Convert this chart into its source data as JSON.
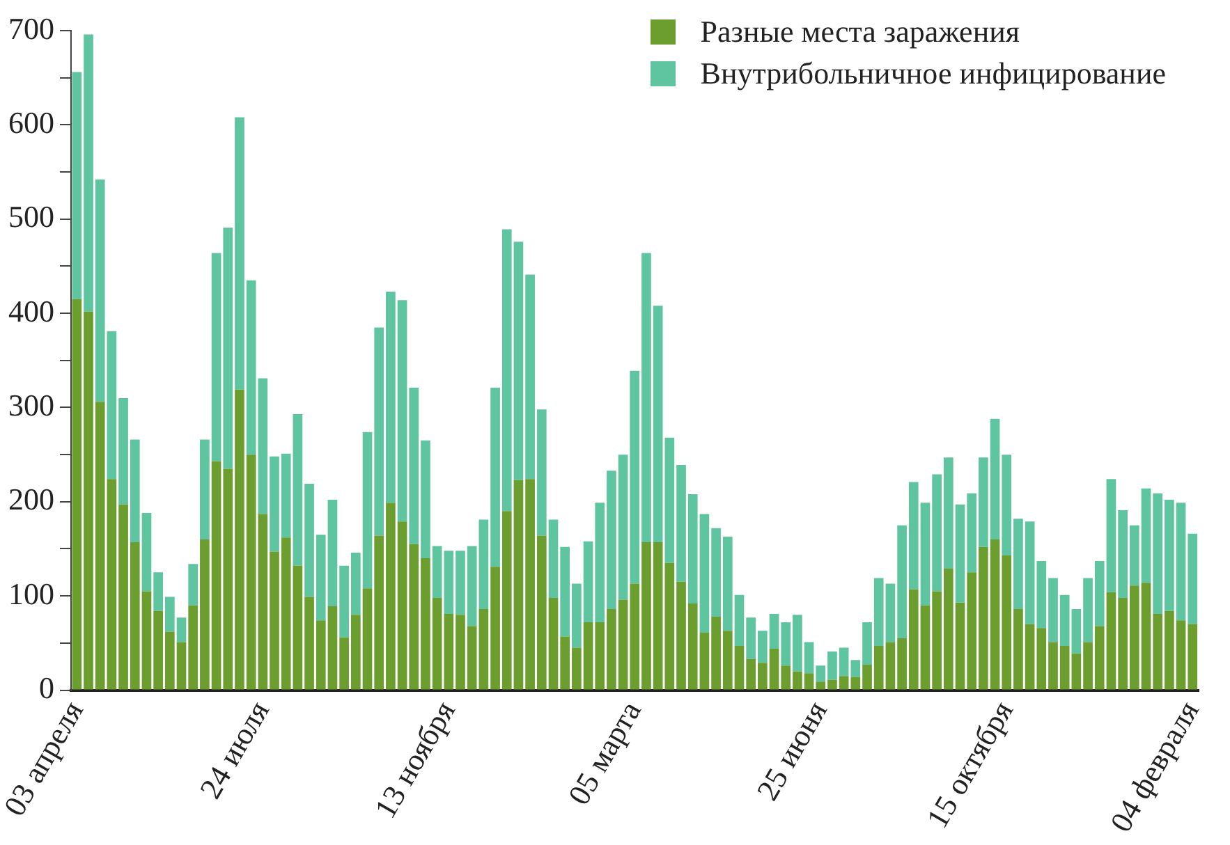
{
  "chart_data": {
    "type": "bar",
    "stacked": true,
    "legend": "top right",
    "grid": false,
    "categories": [
      "03 апреля",
      null,
      null,
      null,
      null,
      null,
      null,
      null,
      null,
      null,
      null,
      null,
      null,
      null,
      null,
      null,
      "24 июля",
      null,
      null,
      null,
      null,
      null,
      null,
      null,
      null,
      null,
      null,
      null,
      null,
      null,
      null,
      null,
      "13 ноября",
      null,
      null,
      null,
      null,
      null,
      null,
      null,
      null,
      null,
      null,
      null,
      null,
      null,
      null,
      null,
      "05 марта",
      null,
      null,
      null,
      null,
      null,
      null,
      null,
      null,
      null,
      null,
      null,
      null,
      null,
      null,
      null,
      "25 июня",
      null,
      null,
      null,
      null,
      null,
      null,
      null,
      null,
      null,
      null,
      null,
      null,
      null,
      null,
      null,
      "15 октября",
      null,
      null,
      null,
      null,
      null,
      null,
      null,
      null,
      null,
      null,
      null,
      null,
      null,
      null,
      null,
      "04 февраля"
    ],
    "ylim": [
      0,
      700
    ],
    "yticks": [
      0,
      {
        "value": 50,
        "label": null
      },
      100,
      {
        "value": 150,
        "label": null
      },
      200,
      {
        "value": 250,
        "label": null
      },
      300,
      {
        "value": 350,
        "label": null
      },
      400,
      {
        "value": 450,
        "label": null
      },
      500,
      {
        "value": 550,
        "label": null
      },
      600,
      {
        "value": 650,
        "label": null
      },
      700
    ],
    "series": [
      {
        "name": "Разные места заражения",
        "color": "#6b9e2e",
        "values": [
          415,
          402,
          306,
          224,
          197,
          157,
          105,
          84,
          62,
          51,
          90,
          160,
          243,
          235,
          319,
          250,
          187,
          147,
          162,
          132,
          99,
          74,
          89,
          56,
          80,
          108,
          164,
          199,
          179,
          155,
          140,
          98,
          81,
          80,
          68,
          86,
          131,
          190,
          223,
          224,
          164,
          98,
          57,
          45,
          72,
          72,
          86,
          96,
          113,
          157,
          157,
          135,
          115,
          92,
          61,
          78,
          63,
          47,
          33,
          29,
          44,
          26,
          20,
          18,
          9,
          11,
          15,
          14,
          27,
          47,
          51,
          55,
          107,
          90,
          105,
          129,
          93,
          125,
          152,
          160,
          143,
          86,
          70,
          66,
          51,
          47,
          39,
          51,
          68,
          104,
          98,
          111,
          114,
          81,
          84,
          74,
          70
        ]
      },
      {
        "name": "Внутрибольничное инфицирование",
        "color": "#5fc4a0",
        "values": [
          241,
          294,
          236,
          157,
          113,
          109,
          83,
          41,
          37,
          26,
          44,
          106,
          221,
          256,
          289,
          185,
          144,
          101,
          89,
          161,
          120,
          91,
          113,
          76,
          66,
          166,
          221,
          224,
          235,
          166,
          125,
          55,
          67,
          68,
          85,
          95,
          190,
          299,
          253,
          217,
          134,
          83,
          95,
          68,
          86,
          127,
          147,
          154,
          226,
          307,
          251,
          133,
          124,
          116,
          126,
          94,
          100,
          54,
          44,
          34,
          37,
          46,
          60,
          33,
          17,
          30,
          30,
          18,
          45,
          72,
          62,
          120,
          114,
          109,
          124,
          118,
          104,
          84,
          95,
          128,
          107,
          96,
          109,
          71,
          68,
          54,
          47,
          68,
          69,
          120,
          93,
          64,
          100,
          128,
          118,
          125,
          96
        ]
      }
    ]
  }
}
